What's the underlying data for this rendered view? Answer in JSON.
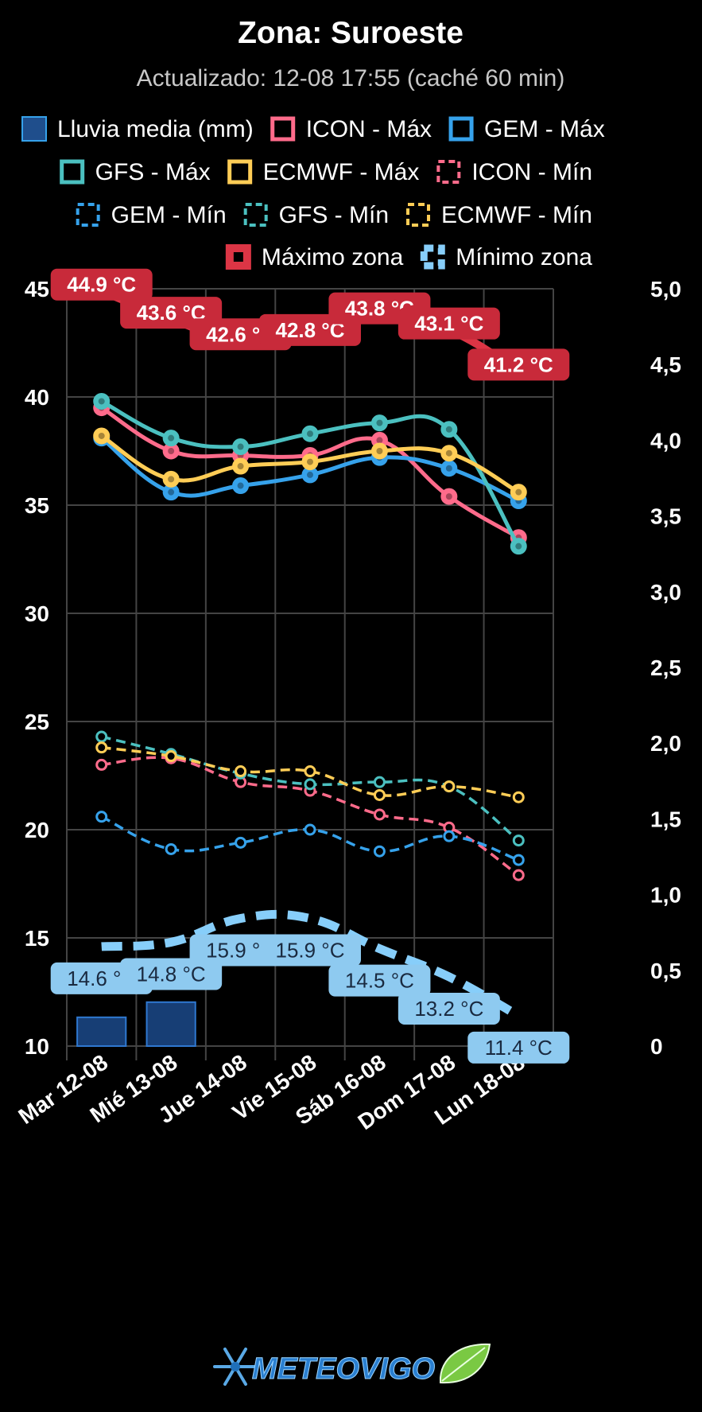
{
  "header": {
    "title": "Zona: Suroeste",
    "subtitle": "Actualizado: 12-08 17:55 (caché 60 min)"
  },
  "legend": [
    {
      "label": "Lluvia media (mm)",
      "color": "#1f4e8c",
      "style": "box"
    },
    {
      "label": "ICON - Máx",
      "color": "#ff6b8b",
      "style": "solid"
    },
    {
      "label": "GEM - Máx",
      "color": "#36a2eb",
      "style": "solid"
    },
    {
      "label": "GFS - Máx",
      "color": "#4bc0c0",
      "style": "solid"
    },
    {
      "label": "ECMWF - Máx",
      "color": "#ffcd56",
      "style": "solid"
    },
    {
      "label": "ICON - Mín",
      "color": "#ff6b8b",
      "style": "dashed"
    },
    {
      "label": "GEM - Mín",
      "color": "#36a2eb",
      "style": "dashed"
    },
    {
      "label": "GFS - Mín",
      "color": "#4bc0c0",
      "style": "dashed"
    },
    {
      "label": "ECMWF - Mín",
      "color": "#ffcd56",
      "style": "dashed"
    },
    {
      "label": "Máximo zona",
      "color": "#dc3545",
      "style": "thick"
    },
    {
      "label": "Mínimo zona",
      "color": "#87cefa",
      "style": "thickdash"
    }
  ],
  "chart_data": {
    "type": "line",
    "categories": [
      "Mar 12-08",
      "Mié 13-08",
      "Jue 14-08",
      "Vie 15-08",
      "Sáb 16-08",
      "Dom 17-08",
      "Lun 18-08"
    ],
    "y_left": {
      "min": 10,
      "max": 45,
      "ticks": [
        10,
        15,
        20,
        25,
        30,
        35,
        40,
        45
      ]
    },
    "y_right": {
      "min": 0,
      "max": 5.0,
      "ticks": [
        "0",
        "0,5",
        "1,0",
        "1,5",
        "2,0",
        "2,5",
        "3,0",
        "3,5",
        "4,0",
        "4,5",
        "5,0"
      ]
    },
    "rain": {
      "name": "Lluvia media (mm)",
      "values": [
        0.19,
        0.29,
        0,
        0,
        0,
        0,
        0
      ]
    },
    "series": [
      {
        "name": "ICON - Máx",
        "color": "#ff6b8b",
        "dashed": false,
        "values": [
          39.5,
          37.5,
          37.3,
          37.3,
          38.0,
          35.4,
          33.5
        ]
      },
      {
        "name": "GEM - Máx",
        "color": "#36a2eb",
        "dashed": false,
        "values": [
          38.1,
          35.6,
          35.9,
          36.4,
          37.2,
          36.7,
          35.2
        ]
      },
      {
        "name": "GFS - Máx",
        "color": "#4bc0c0",
        "dashed": false,
        "values": [
          39.8,
          38.1,
          37.7,
          38.3,
          38.8,
          38.5,
          33.1
        ]
      },
      {
        "name": "ECMWF - Máx",
        "color": "#ffcd56",
        "dashed": false,
        "values": [
          38.2,
          36.2,
          36.8,
          37.0,
          37.5,
          37.4,
          35.6
        ]
      },
      {
        "name": "ICON - Mín",
        "color": "#ff6b8b",
        "dashed": true,
        "values": [
          23.0,
          23.3,
          22.2,
          21.8,
          20.7,
          20.1,
          17.9
        ]
      },
      {
        "name": "GEM - Mín",
        "color": "#36a2eb",
        "dashed": true,
        "values": [
          20.6,
          19.1,
          19.4,
          20.0,
          19.0,
          19.7,
          18.6
        ]
      },
      {
        "name": "GFS - Mín",
        "color": "#4bc0c0",
        "dashed": true,
        "values": [
          24.3,
          23.5,
          22.6,
          22.1,
          22.2,
          22.0,
          19.5
        ]
      },
      {
        "name": "ECMWF - Mín",
        "color": "#ffcd56",
        "dashed": true,
        "values": [
          23.8,
          23.4,
          22.7,
          22.7,
          21.6,
          22.0,
          21.5
        ]
      }
    ],
    "zone_max": {
      "name": "Máximo zona",
      "color": "#dc3545",
      "values": [
        44.9,
        43.6,
        42.6,
        42.8,
        43.8,
        43.1,
        41.2
      ],
      "labels": [
        "44.9 °C",
        "43.6 °C",
        "42.6 °C",
        "42.8 °C",
        "43.8 °C",
        "43.1 °C",
        "41.2 °C"
      ]
    },
    "zone_min": {
      "name": "Mínimo zona",
      "color": "#87cefa",
      "values": [
        14.6,
        14.8,
        15.9,
        15.9,
        14.5,
        13.2,
        11.4
      ],
      "labels": [
        "14.6 °C",
        "14.8 °C",
        "15.9 °C",
        "15.9 °C",
        "14.5 °C",
        "13.2 °C",
        "11.4 °C"
      ]
    }
  },
  "footer": {
    "logo_text": "METEOVIGO"
  }
}
